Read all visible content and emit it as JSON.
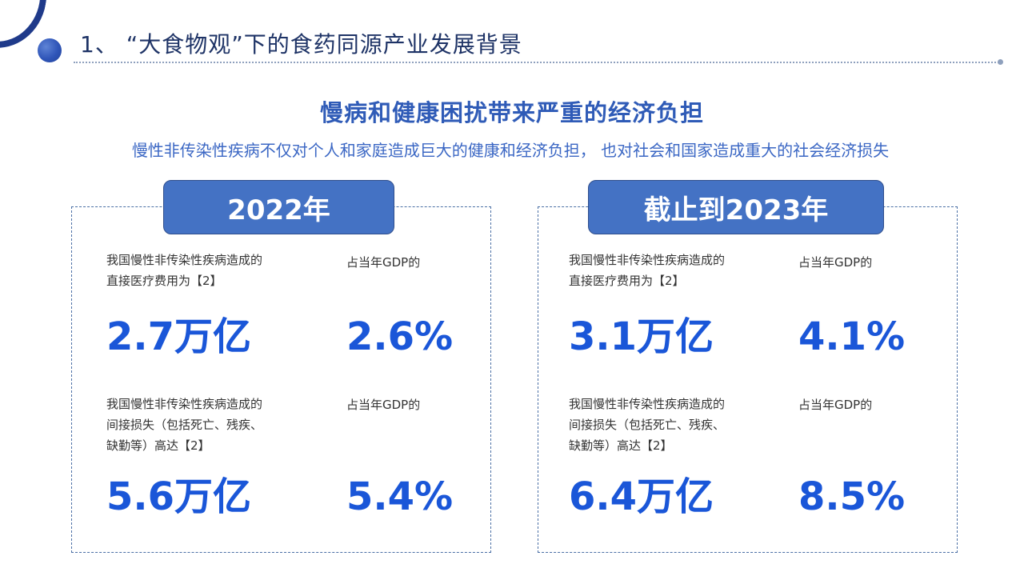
{
  "header": {
    "title": "1、 “大食物观”下的食药同源产业发展背景"
  },
  "headline": "慢病和健康困扰带来严重的经济负担",
  "subtitle": "慢性非传染性疾病不仅对个人和家庭造成巨大的健康和经济负担， 也对社会和国家造成重大的社会经济损失",
  "panels": [
    {
      "tag": "2022年",
      "direct": {
        "label_line1": "我国慢性非传染性疾病造成的",
        "label_line2": "直接医疗费用为【2】",
        "gdp_label": "占当年GDP的",
        "amount": "2.7万亿",
        "percent": "2.6%"
      },
      "indirect": {
        "label_line1": "我国慢性非传染性疾病造成的",
        "label_line2": "间接损失（包括死亡、残疾、",
        "label_line3": "缺勤等）高达【2】",
        "gdp_label": "占当年GDP的",
        "amount": "5.6万亿",
        "percent": "5.4%"
      }
    },
    {
      "tag": "截止到2023年",
      "direct": {
        "label_line1": "我国慢性非传染性疾病造成的",
        "label_line2": "直接医疗费用为【2】",
        "gdp_label": "占当年GDP的",
        "amount": "3.1万亿",
        "percent": "4.1%"
      },
      "indirect": {
        "label_line1": "我国慢性非传染性疾病造成的",
        "label_line2": "间接损失（包括死亡、残疾、",
        "label_line3": "缺勤等）高达【2】",
        "gdp_label": "占当年GDP的",
        "amount": "6.4万亿",
        "percent": "8.5%"
      }
    }
  ],
  "colors": {
    "title": "#1e3366",
    "accent_blue": "#2f5bb7",
    "tag_fill": "#4472c4",
    "big_number": "#1a56d8"
  }
}
